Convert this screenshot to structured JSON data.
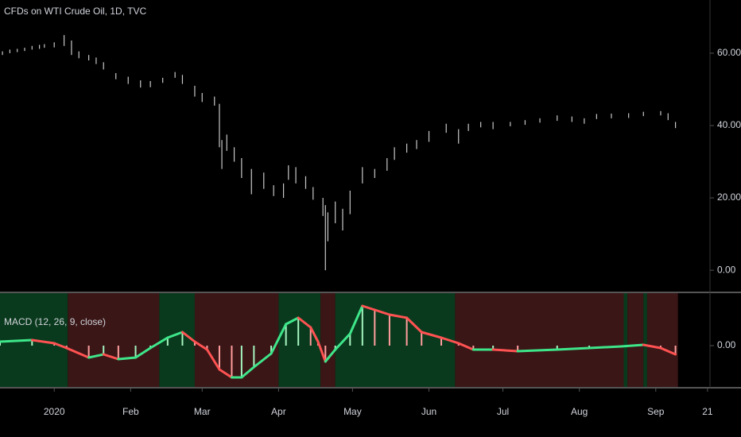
{
  "chart_data": [
    {
      "type": "range_bar",
      "title": "CFDs on WTI Crude Oil, 1D, TVC",
      "color": "#c8c8c8",
      "x": [
        -21,
        -18,
        -15,
        -12,
        -9,
        -6,
        -4,
        0,
        4,
        7,
        10,
        14,
        17,
        20,
        25,
        30,
        35,
        39,
        44,
        49,
        52,
        57,
        60,
        65,
        67,
        68,
        70,
        73,
        76,
        80,
        85,
        89,
        93,
        95,
        98,
        102,
        105,
        109,
        110,
        111,
        114,
        117,
        120,
        125,
        130,
        135,
        138,
        143,
        147,
        152,
        159,
        164,
        168,
        173,
        178,
        185,
        191,
        197,
        204,
        210,
        215,
        220,
        226,
        233,
        239,
        246,
        249,
        252
      ],
      "high": [
        60.5,
        61,
        61.2,
        61.5,
        62,
        62.3,
        62.5,
        63,
        65,
        63.5,
        60.5,
        59.5,
        58.8,
        57.5,
        54.5,
        53.5,
        52.5,
        52.3,
        53.2,
        54.8,
        54,
        51,
        49,
        48,
        46,
        36,
        37.5,
        34,
        31,
        28,
        27,
        23.5,
        24,
        29,
        28.5,
        26,
        23,
        20,
        18,
        16,
        19,
        17,
        22,
        28.5,
        28,
        31,
        34,
        35,
        36,
        38.5,
        40.5,
        39,
        40.5,
        41,
        41,
        41,
        41.5,
        42,
        42.8,
        42.5,
        42,
        43.2,
        43.3,
        43.4,
        43.8,
        44,
        43.4,
        41
      ],
      "low": [
        59.5,
        60,
        60.3,
        60.6,
        61,
        61.2,
        61.5,
        61.6,
        62,
        59.5,
        58.6,
        58,
        57,
        55.5,
        52.8,
        51.5,
        50.5,
        50.6,
        51.8,
        53.2,
        51.5,
        48,
        46.5,
        45.5,
        34,
        28,
        33,
        30,
        25.5,
        21,
        22.5,
        20.5,
        20,
        25,
        24,
        22.5,
        19.5,
        15,
        0,
        8,
        13,
        11,
        15.5,
        24,
        25.5,
        27.5,
        30.5,
        32.5,
        33.5,
        35.5,
        38,
        35,
        38.5,
        39.5,
        39,
        39.8,
        40.2,
        40.8,
        41.3,
        41,
        40.5,
        41.8,
        42,
        42.1,
        42.6,
        42.8,
        41.5,
        39.3
      ],
      "xlim": [
        -22,
        266
      ],
      "xticks": [
        {
          "value": 0,
          "label": "2020"
        },
        {
          "value": 31,
          "label": "Feb"
        },
        {
          "value": 60,
          "label": "Mar"
        },
        {
          "value": 91,
          "label": "Apr"
        },
        {
          "value": 121,
          "label": "May"
        },
        {
          "value": 152,
          "label": "Jun"
        },
        {
          "value": 182,
          "label": "Jul"
        },
        {
          "value": 213,
          "label": "Aug"
        },
        {
          "value": 244,
          "label": "Sep"
        },
        {
          "value": 265,
          "label": "21"
        }
      ],
      "ylim": [
        -5.9,
        74.7
      ],
      "yticks": [
        {
          "value": 0,
          "label": "0.00"
        },
        {
          "value": 20,
          "label": "20.00"
        },
        {
          "value": 40,
          "label": "40.00"
        },
        {
          "value": 60,
          "label": "60.00"
        }
      ]
    },
    {
      "type": "macd",
      "title": "MACD (12, 26, 9, close)",
      "x": [
        -22,
        -9,
        0,
        5,
        14,
        20,
        26,
        33,
        39,
        46,
        52,
        57,
        62,
        67,
        72,
        76,
        81,
        88,
        94,
        99,
        104,
        107,
        110,
        114,
        120,
        125,
        130,
        136,
        143,
        149,
        157,
        164,
        170,
        178,
        188,
        204,
        217,
        230,
        239,
        246,
        252
      ],
      "values": [
        0.5,
        0.7,
        0.3,
        -0.3,
        -1.5,
        -1.1,
        -1.7,
        -1.5,
        -0.3,
        1,
        1.7,
        0.5,
        -0.5,
        -3,
        -4,
        -4,
        -2.7,
        -1,
        2.7,
        3.5,
        2.3,
        0.5,
        -2,
        -0.5,
        1.5,
        5,
        4.5,
        3.9,
        3.5,
        1.7,
        1,
        0.3,
        -0.5,
        -0.5,
        -0.7,
        -0.5,
        -0.3,
        -0.1,
        0.1,
        -0.3,
        -1.1
      ],
      "rising_color": "#3ee68a",
      "falling_color": "#ff5252",
      "hist_rising_color": "#a5f5c0",
      "hist_falling_color": "#ff9e9e",
      "bands": [
        {
          "from": -22,
          "to": 5.5,
          "color": "#0a3a1d"
        },
        {
          "from": 5.5,
          "to": 42.6,
          "color": "#3a1616"
        },
        {
          "from": 42.6,
          "to": 57,
          "color": "#0a3a1d"
        },
        {
          "from": 57,
          "to": 91,
          "color": "#3a1616"
        },
        {
          "from": 91,
          "to": 108,
          "color": "#0a3a1d"
        },
        {
          "from": 108,
          "to": 114,
          "color": "#3a1616"
        },
        {
          "from": 114,
          "to": 162.6,
          "color": "#0a3a1d"
        },
        {
          "from": 162.6,
          "to": 231,
          "color": "#3a1616"
        },
        {
          "from": 231,
          "to": 232.5,
          "color": "#0a3a1d"
        },
        {
          "from": 232.5,
          "to": 239,
          "color": "#3a1616"
        },
        {
          "from": 239,
          "to": 240.5,
          "color": "#0a3a1d"
        },
        {
          "from": 240.5,
          "to": 253,
          "color": "#3a1616"
        }
      ],
      "ylim": [
        -5.2,
        6.6
      ],
      "yticks": [
        {
          "value": 0,
          "label": "0.00"
        }
      ]
    }
  ]
}
